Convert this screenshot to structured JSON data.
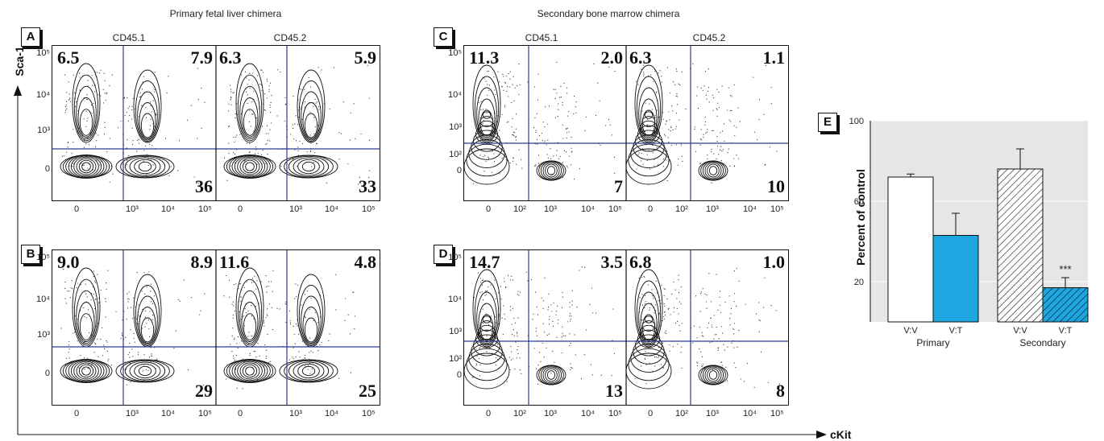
{
  "headers": {
    "primary": "Primary fetal liver chimera",
    "secondary": "Secondary bone marrow chimera"
  },
  "columns": {
    "cd451": "CD45.1",
    "cd452": "CD45.2"
  },
  "axes": {
    "y": "Sca-1",
    "x": "cKit"
  },
  "panels": {
    "A": {
      "label": "A",
      "left": {
        "tl": "6.5",
        "tr": "7.9",
        "br": "36"
      },
      "right": {
        "tl": "6.3",
        "tr": "5.9",
        "br": "33"
      }
    },
    "B": {
      "label": "B",
      "left": {
        "tl": "9.0",
        "tr": "8.9",
        "br": "29"
      },
      "right": {
        "tl": "11.6",
        "tr": "4.8",
        "br": "25"
      }
    },
    "C": {
      "label": "C",
      "left": {
        "tl": "11.3",
        "tr": "2.0",
        "br": "7"
      },
      "right": {
        "tl": "6.3",
        "tr": "1.1",
        "br": "10"
      }
    },
    "D": {
      "label": "D",
      "left": {
        "tl": "14.7",
        "tr": "3.5",
        "br": "13"
      },
      "right": {
        "tl": "6.8",
        "tr": "1.0",
        "br": "8"
      }
    }
  },
  "ticks": {
    "y_primary": [
      "10⁵",
      "10⁴",
      "10³",
      "0"
    ],
    "y_secondary": [
      "10⁵",
      "10⁴",
      "10³",
      "10²",
      "0"
    ],
    "x_primary": [
      "0",
      "10³",
      "10⁴",
      "10⁵"
    ],
    "x_secondary": [
      "0",
      "10²",
      "10³",
      "10⁴",
      "10⁵"
    ]
  },
  "chart_data": {
    "type": "bar",
    "panel_label": "E",
    "ylabel": "Percent of control",
    "yticks": [
      20,
      60,
      100
    ],
    "ylim": [
      0,
      100
    ],
    "grid": true,
    "groups": [
      {
        "name": "Primary",
        "bars": [
          {
            "label": "V:V",
            "value": 72,
            "error": 1.5,
            "fill": "#ffffff",
            "hatch": false
          },
          {
            "label": "V:T",
            "value": 43,
            "error": 11,
            "fill": "#1ea6e0",
            "hatch": false
          }
        ]
      },
      {
        "name": "Secondary",
        "bars": [
          {
            "label": "V:V",
            "value": 76,
            "error": 10,
            "fill": "#ffffff",
            "hatch": true
          },
          {
            "label": "V:T",
            "value": 17,
            "error": 5,
            "fill": "#1ea6e0",
            "hatch": true,
            "annotation": "***"
          }
        ]
      }
    ]
  }
}
